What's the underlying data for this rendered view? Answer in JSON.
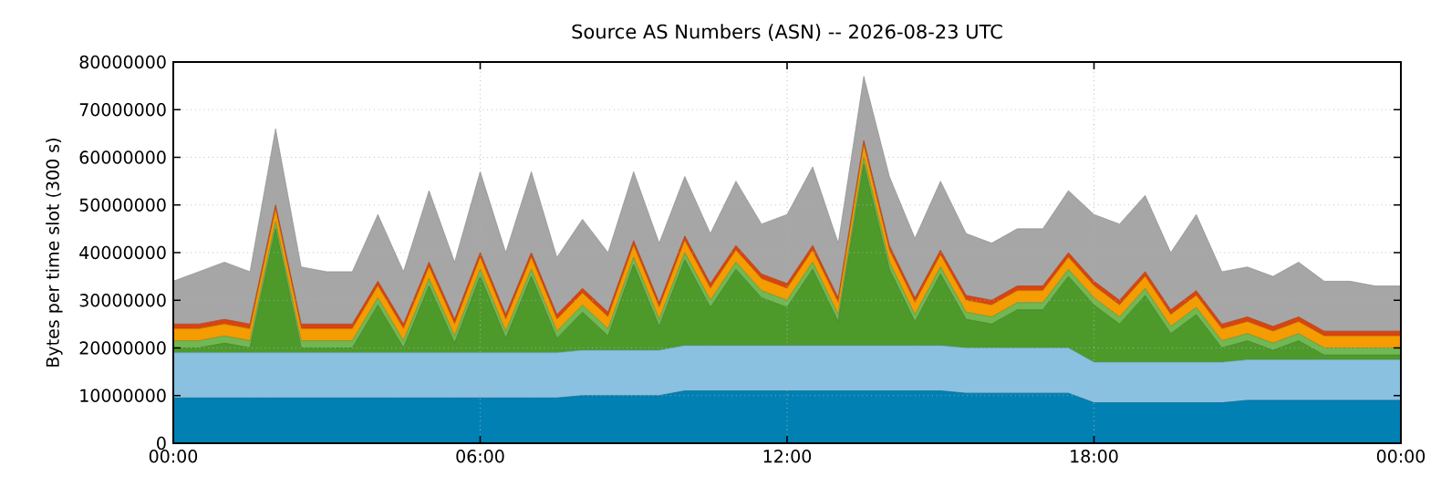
{
  "chart_data": {
    "type": "area",
    "stacked": true,
    "title": "Source AS Numbers (ASN) -- 2026-08-23 UTC",
    "ylabel": "Bytes per time slot (300 s)",
    "x": [
      0,
      0.5,
      1,
      1.5,
      2,
      2.5,
      3,
      3.5,
      4,
      4.5,
      5,
      5.5,
      6,
      6.5,
      7,
      7.5,
      8,
      8.5,
      9,
      9.5,
      10,
      10.5,
      11,
      11.5,
      12,
      12.5,
      13,
      13.5,
      14,
      14.5,
      15,
      15.5,
      16,
      16.5,
      17,
      17.5,
      18,
      18.5,
      19,
      19.5,
      20,
      20.5,
      21,
      21.5,
      22,
      22.5,
      23,
      23.5,
      24
    ],
    "series": [
      {
        "color": "#0080b3",
        "values": [
          9500000.0,
          9500000.0,
          9500000.0,
          9500000.0,
          9500000.0,
          9500000.0,
          9500000.0,
          9500000.0,
          9500000.0,
          9500000.0,
          9500000.0,
          9500000.0,
          9500000.0,
          9500000.0,
          9500000.0,
          9500000.0,
          10000000.0,
          10000000.0,
          10000000.0,
          10000000.0,
          11000000.0,
          11000000.0,
          11000000.0,
          11000000.0,
          11000000.0,
          11000000.0,
          11000000.0,
          11000000.0,
          11000000.0,
          11000000.0,
          11000000.0,
          10500000.0,
          10500000.0,
          10500000.0,
          10500000.0,
          10500000.0,
          8500000.0,
          8500000.0,
          8500000.0,
          8500000.0,
          8500000.0,
          8500000.0,
          9000000.0,
          9000000.0,
          9000000.0,
          9000000.0,
          9000000.0,
          9000000.0,
          9000000.0
        ]
      },
      {
        "color": "#8ac1e1",
        "values": [
          9500000.0,
          9500000.0,
          9500000.0,
          9500000.0,
          9500000.0,
          9500000.0,
          9500000.0,
          9500000.0,
          9500000.0,
          9500000.0,
          9500000.0,
          9500000.0,
          9500000.0,
          9500000.0,
          9500000.0,
          9500000.0,
          9500000.0,
          9500000.0,
          9500000.0,
          9500000.0,
          9500000.0,
          9500000.0,
          9500000.0,
          9500000.0,
          9500000.0,
          9500000.0,
          9500000.0,
          9500000.0,
          9500000.0,
          9500000.0,
          9500000.0,
          9500000.0,
          9500000.0,
          9500000.0,
          9500000.0,
          9500000.0,
          8500000.0,
          8500000.0,
          8500000.0,
          8500000.0,
          8500000.0,
          8500000.0,
          8500000.0,
          8500000.0,
          8500000.0,
          8500000.0,
          8500000.0,
          8500000.0,
          8500000.0
        ]
      },
      {
        "color": "#4d9a2b",
        "values": [
          1000000.0,
          1000000.0,
          2000000.0,
          1000000.0,
          26000000.0,
          1000000.0,
          1000000.0,
          1000000.0,
          10000000.0,
          1000000.0,
          14000000.0,
          2000000.0,
          16000000.0,
          3000000.0,
          16000000.0,
          3000000.0,
          8000000.0,
          3000000.0,
          18000000.0,
          5000000.0,
          18000000.0,
          8000000.0,
          16000000.0,
          10000000.0,
          8000000.0,
          16000000.0,
          5000000.0,
          38000000.0,
          16000000.0,
          5000000.0,
          15000000.0,
          6000000.0,
          5000000.0,
          8000000.0,
          8000000.0,
          15000000.0,
          12000000.0,
          8000000.0,
          14000000.0,
          6000000.0,
          10000000.0,
          3000000.0,
          4000000.0,
          2000000.0,
          4000000.0,
          1000000.0,
          1000000.0,
          1000000.0,
          1000000.0
        ]
      },
      {
        "color": "#71b853",
        "values": [
          1500000.0,
          1500000.0,
          1500000.0,
          1500000.0,
          1500000.0,
          1500000.0,
          1500000.0,
          1500000.0,
          1500000.0,
          1500000.0,
          1500000.0,
          1500000.0,
          1500000.0,
          1500000.0,
          1500000.0,
          1500000.0,
          1500000.0,
          1500000.0,
          1500000.0,
          1500000.0,
          1500000.0,
          1500000.0,
          1500000.0,
          1500000.0,
          1500000.0,
          1500000.0,
          1500000.0,
          1500000.0,
          1500000.0,
          1500000.0,
          1500000.0,
          1500000.0,
          1500000.0,
          1500000.0,
          1500000.0,
          1500000.0,
          1500000.0,
          1500000.0,
          1500000.0,
          1500000.0,
          1500000.0,
          1500000.0,
          1500000.0,
          1500000.0,
          1500000.0,
          1500000.0,
          1500000.0,
          1500000.0,
          1500000.0
        ]
      },
      {
        "color": "#f49c00",
        "values": [
          2500000.0,
          2500000.0,
          2500000.0,
          2500000.0,
          2500000.0,
          2500000.0,
          2500000.0,
          2500000.0,
          2500000.0,
          2500000.0,
          2500000.0,
          2500000.0,
          2500000.0,
          2500000.0,
          2500000.0,
          2500000.0,
          2500000.0,
          2500000.0,
          2500000.0,
          2500000.0,
          2500000.0,
          2500000.0,
          2500000.0,
          2500000.0,
          2500000.0,
          2500000.0,
          2500000.0,
          2500000.0,
          2500000.0,
          2500000.0,
          2500000.0,
          2500000.0,
          2500000.0,
          2500000.0,
          2500000.0,
          2500000.0,
          2500000.0,
          2500000.0,
          2500000.0,
          2500000.0,
          2500000.0,
          2500000.0,
          2500000.0,
          2500000.0,
          2500000.0,
          2500000.0,
          2500000.0,
          2500000.0,
          2500000.0
        ]
      },
      {
        "color": "#d9440f",
        "values": [
          1000000.0,
          1000000.0,
          1000000.0,
          1000000.0,
          1000000.0,
          1000000.0,
          1000000.0,
          1000000.0,
          1000000.0,
          1000000.0,
          1000000.0,
          1000000.0,
          1000000.0,
          1000000.0,
          1000000.0,
          1000000.0,
          1000000.0,
          1000000.0,
          1000000.0,
          1000000.0,
          1000000.0,
          1000000.0,
          1000000.0,
          1000000.0,
          1000000.0,
          1000000.0,
          1000000.0,
          1000000.0,
          1000000.0,
          1000000.0,
          1000000.0,
          1000000.0,
          1000000.0,
          1000000.0,
          1000000.0,
          1000000.0,
          1000000.0,
          1000000.0,
          1000000.0,
          1000000.0,
          1000000.0,
          1000000.0,
          1000000.0,
          1000000.0,
          1000000.0,
          1000000.0,
          1000000.0,
          1000000.0,
          1000000.0
        ]
      },
      {
        "color": "#a6a6a6",
        "values": [
          9000000.0,
          11000000.0,
          12000000.0,
          11000000.0,
          16000000.0,
          12000000.0,
          11000000.0,
          11000000.0,
          14000000.0,
          11000000.0,
          15000000.0,
          12000000.0,
          17000000.0,
          13000000.0,
          17000000.0,
          12000000.0,
          14500000.0,
          12500000.0,
          14500000.0,
          12500000.0,
          12500000.0,
          10500000.0,
          13500000.0,
          10500000.0,
          14500000.0,
          16500000.0,
          11500000.0,
          13500000.0,
          14500000.0,
          12500000.0,
          14500000.0,
          13000000.0,
          12000000.0,
          12000000.0,
          12000000.0,
          13000000.0,
          14000000.0,
          16000000.0,
          16000000.0,
          12000000.0,
          16000000.0,
          11000000.0,
          10500000.0,
          10500000.0,
          11500000.0,
          10500000.0,
          10500000.0,
          9500000.0,
          9500000.0
        ]
      }
    ],
    "xlim": [
      0,
      24
    ],
    "xticks": [
      {
        "value": 0,
        "label": "00:00"
      },
      {
        "value": 6,
        "label": "06:00"
      },
      {
        "value": 12,
        "label": "12:00"
      },
      {
        "value": 18,
        "label": "18:00"
      },
      {
        "value": 24,
        "label": "00:00"
      }
    ],
    "ylim": [
      0,
      80000000
    ],
    "yticks": [
      0,
      10000000,
      20000000,
      30000000,
      40000000,
      50000000,
      60000000,
      70000000,
      80000000
    ],
    "grid": true
  }
}
